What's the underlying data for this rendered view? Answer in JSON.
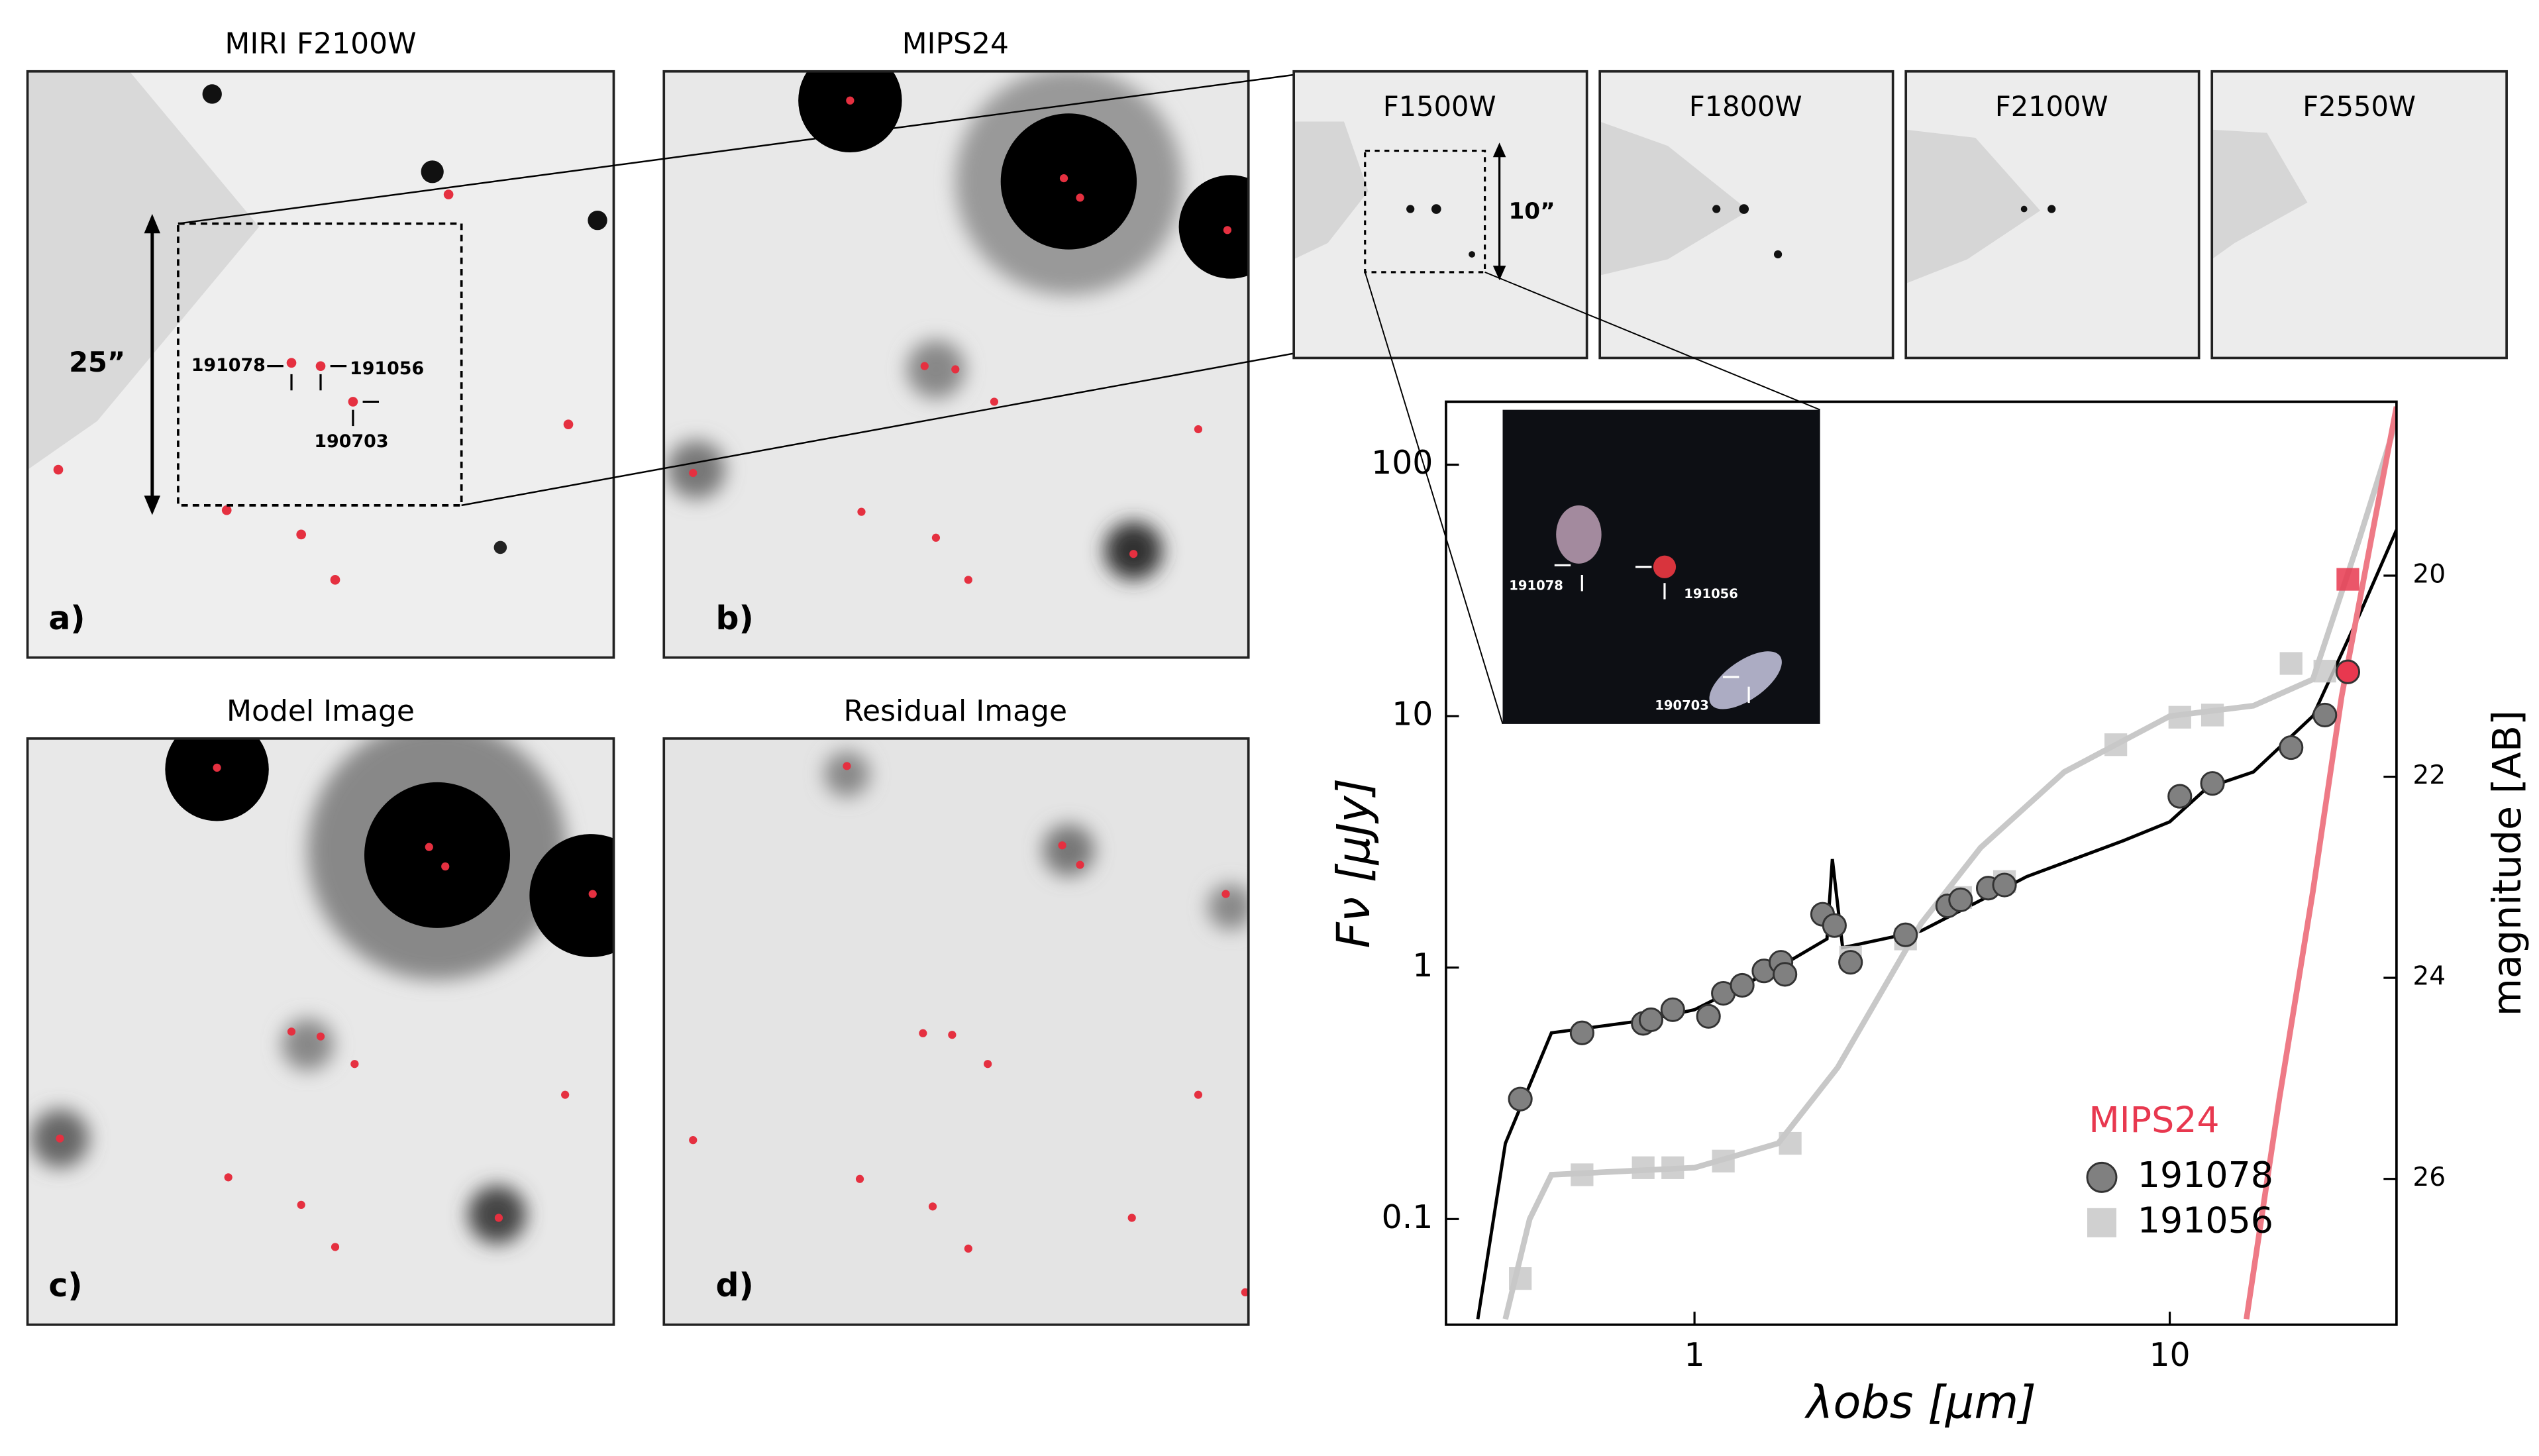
{
  "panels": [
    {
      "title": "MIRI F2100W",
      "label": "a)"
    },
    {
      "title": "MIPS24",
      "label": "b)"
    },
    {
      "title": "Model Image",
      "label": "c)"
    },
    {
      "title": "Residual Image",
      "label": "d)"
    }
  ],
  "annotations": {
    "scale_large": "25”",
    "scale_small": "10”",
    "sources": [
      "191078",
      "191056",
      "190703"
    ]
  },
  "filters": [
    "F1500W",
    "F1800W",
    "F2100W",
    "F2550W"
  ],
  "chart_data": {
    "type": "scatter",
    "xlabel": "λobs [μm]",
    "ylabel": "Fν [μJy]",
    "y2label": "magnitude [AB]",
    "xscale": "log",
    "yscale": "log",
    "xlim": [
      0.3,
      30
    ],
    "ylim": [
      0.038,
      178
    ],
    "xticks": [
      1,
      10
    ],
    "yticks": [
      0.1,
      1,
      10,
      100
    ],
    "y2lim": [
      27.45,
      18.27
    ],
    "y2ticks": [
      20,
      22,
      24,
      26
    ],
    "legend": "lower right",
    "series": [
      {
        "name": "191078",
        "marker": "circle",
        "color": "#808080",
        "x": [
          0.43,
          0.58,
          0.78,
          0.81,
          0.9,
          1.07,
          1.15,
          1.26,
          1.4,
          1.52,
          1.55,
          1.86,
          1.97,
          2.13,
          2.78,
          3.41,
          3.63,
          4.15,
          4.49,
          10.5,
          12.3,
          18.0,
          21.2
        ],
        "values": [
          0.3,
          0.55,
          0.6,
          0.62,
          0.68,
          0.64,
          0.79,
          0.85,
          0.97,
          1.05,
          0.94,
          1.63,
          1.47,
          1.05,
          1.35,
          1.76,
          1.86,
          2.07,
          2.13,
          4.8,
          5.4,
          7.5,
          10.1
        ]
      },
      {
        "name": "191056",
        "marker": "square",
        "color": "#c8c8c8",
        "x": [
          0.43,
          0.58,
          0.78,
          0.9,
          1.15,
          1.59,
          2.13,
          2.78,
          3.63,
          4.49,
          7.7,
          10.5,
          12.3,
          18.0,
          21.2
        ],
        "values": [
          0.058,
          0.15,
          0.16,
          0.16,
          0.17,
          0.2,
          1.1,
          1.3,
          1.9,
          2.2,
          7.7,
          9.9,
          10.1,
          16.2,
          15.1
        ]
      }
    ],
    "mips24": {
      "label": "MIPS24",
      "color": "#e8384f",
      "x": [
        23.7,
        23.7
      ],
      "values": [
        15,
        35
      ],
      "markers": [
        "circle",
        "square"
      ]
    },
    "models": [
      {
        "color": "#000000",
        "x": [
          0.35,
          0.4,
          0.5,
          0.8,
          1,
          1.5,
          1.9,
          1.95,
          2.05,
          3,
          5,
          8,
          10,
          12,
          15,
          20,
          25,
          30
        ],
        "values": [
          0.04,
          0.2,
          0.55,
          0.62,
          0.68,
          1.0,
          1.3,
          2.7,
          1.2,
          1.4,
          2.3,
          3.2,
          3.8,
          5.2,
          6,
          10,
          25,
          55
        ]
      },
      {
        "color": "#c8c8c8",
        "x": [
          0.4,
          0.45,
          0.5,
          1,
          1.5,
          2,
          3,
          4,
          6,
          10,
          15,
          20,
          25,
          30
        ],
        "values": [
          0.04,
          0.1,
          0.15,
          0.16,
          0.2,
          0.4,
          1.5,
          3,
          6,
          10,
          11,
          14,
          50,
          150
        ]
      },
      {
        "color": "#ee7a86",
        "x": [
          14.5,
          17,
          20,
          23,
          27,
          30
        ],
        "values": [
          0.04,
          0.3,
          2,
          12,
          60,
          170
        ]
      }
    ]
  }
}
